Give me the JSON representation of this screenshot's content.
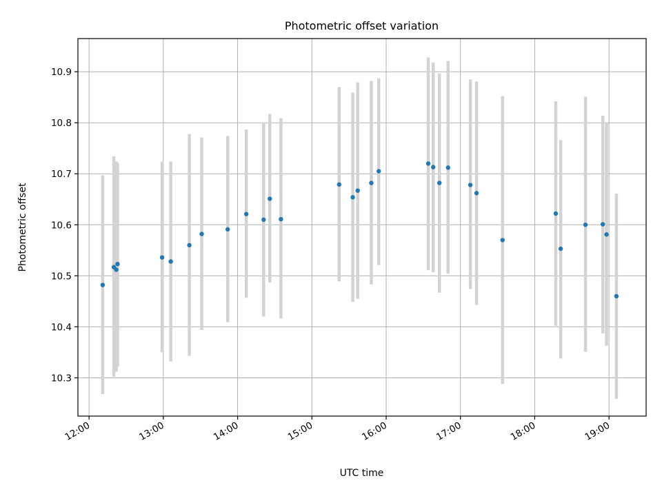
{
  "chart_data": {
    "type": "scatter",
    "title": "Photometric offset variation",
    "xlabel": "UTC time",
    "ylabel": "Photometric offset",
    "grid": true,
    "x_unit": "time of day (HH:MM)",
    "xlim": [
      "11:51",
      "19:30"
    ],
    "ylim": [
      10.225,
      10.965
    ],
    "xticks": [
      "12:00",
      "13:00",
      "14:00",
      "15:00",
      "16:00",
      "17:00",
      "18:00",
      "19:00"
    ],
    "yticks": [
      "10.3",
      "10.4",
      "10.5",
      "10.6",
      "10.7",
      "10.8",
      "10.9"
    ],
    "colors": {
      "points": "#1f77b4",
      "errorbars": "#d3d3d3"
    },
    "series": [
      {
        "points": [
          {
            "x": "12:11",
            "y": 10.482,
            "low": 10.268,
            "high": 10.697
          },
          {
            "x": "12:20",
            "y": 10.517,
            "low": 10.302,
            "high": 10.734
          },
          {
            "x": "12:22",
            "y": 10.512,
            "low": 10.312,
            "high": 10.724
          },
          {
            "x": "12:23",
            "y": 10.523,
            "low": 10.322,
            "high": 10.721
          },
          {
            "x": "12:59",
            "y": 10.536,
            "low": 10.35,
            "high": 10.724
          },
          {
            "x": "13:06",
            "y": 10.528,
            "low": 10.332,
            "high": 10.724
          },
          {
            "x": "13:21",
            "y": 10.56,
            "low": 10.343,
            "high": 10.778
          },
          {
            "x": "13:31",
            "y": 10.582,
            "low": 10.394,
            "high": 10.771
          },
          {
            "x": "13:52",
            "y": 10.591,
            "low": 10.409,
            "high": 10.774
          },
          {
            "x": "14:07",
            "y": 10.621,
            "low": 10.457,
            "high": 10.787
          },
          {
            "x": "14:21",
            "y": 10.61,
            "low": 10.42,
            "high": 10.801
          },
          {
            "x": "14:26",
            "y": 10.651,
            "low": 10.487,
            "high": 10.817
          },
          {
            "x": "14:35",
            "y": 10.611,
            "low": 10.416,
            "high": 10.809
          },
          {
            "x": "15:22",
            "y": 10.679,
            "low": 10.489,
            "high": 10.87
          },
          {
            "x": "15:33",
            "y": 10.654,
            "low": 10.449,
            "high": 10.859
          },
          {
            "x": "15:37",
            "y": 10.667,
            "low": 10.455,
            "high": 10.879
          },
          {
            "x": "15:48",
            "y": 10.682,
            "low": 10.483,
            "high": 10.882
          },
          {
            "x": "15:54",
            "y": 10.705,
            "low": 10.521,
            "high": 10.887
          },
          {
            "x": "16:34",
            "y": 10.72,
            "low": 10.511,
            "high": 10.928
          },
          {
            "x": "16:38",
            "y": 10.713,
            "low": 10.507,
            "high": 10.918
          },
          {
            "x": "16:43",
            "y": 10.682,
            "low": 10.467,
            "high": 10.897
          },
          {
            "x": "16:50",
            "y": 10.712,
            "low": 10.504,
            "high": 10.921
          },
          {
            "x": "17:08",
            "y": 10.678,
            "low": 10.474,
            "high": 10.885
          },
          {
            "x": "17:13",
            "y": 10.662,
            "low": 10.443,
            "high": 10.881
          },
          {
            "x": "17:34",
            "y": 10.57,
            "low": 10.288,
            "high": 10.852
          },
          {
            "x": "18:17",
            "y": 10.622,
            "low": 10.402,
            "high": 10.842
          },
          {
            "x": "18:21",
            "y": 10.553,
            "low": 10.338,
            "high": 10.766
          },
          {
            "x": "18:41",
            "y": 10.6,
            "low": 10.351,
            "high": 10.851
          },
          {
            "x": "18:55",
            "y": 10.601,
            "low": 10.387,
            "high": 10.814
          },
          {
            "x": "18:58",
            "y": 10.581,
            "low": 10.363,
            "high": 10.8
          },
          {
            "x": "19:06",
            "y": 10.46,
            "low": 10.259,
            "high": 10.661
          }
        ]
      }
    ]
  }
}
